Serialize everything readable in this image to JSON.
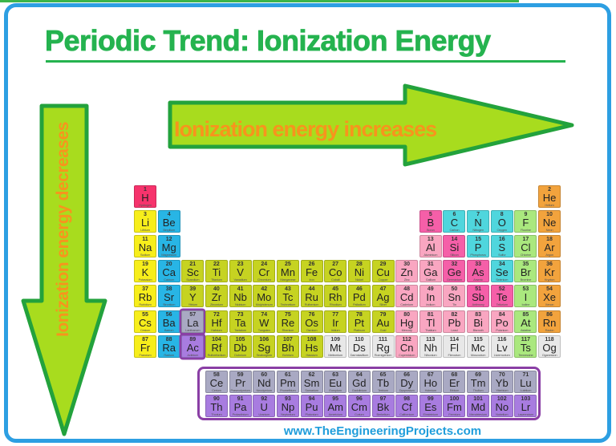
{
  "title": "Periodic Trend: Ionization Energy",
  "horizontal_arrow_label": "Ionization energy increases",
  "vertical_arrow_label": "Ionization energy decreases",
  "watermark": "www.TheEngineeringProjects.com",
  "colors": {
    "title_green": "#25b34f",
    "top_strip_green": "#3bb54a",
    "frame_blue": "#2d9fe2",
    "arrow_fill": "#a8dc1e",
    "arrow_stroke": "#23a23c",
    "arrow_label_orange": "#f7941d",
    "watermark_blue": "#1f9ddb",
    "group_box_purple": "#8a3fa5"
  },
  "periodic_table": {
    "category_colors": {
      "hydrogen": "#f6336c",
      "alkali-metal": "#f7ee1b",
      "alkaline-earth": "#28b5e5",
      "transition-metal": "#c6d321",
      "post-transition": "#f9a6c1",
      "metalloid": "#f55fa8",
      "nonmetal": "#4fd6dd",
      "halogen": "#aae87e",
      "noble-gas": "#f2a33d",
      "unknown": "#e8e8e8",
      "lanthanide": "#a9a9c3",
      "actinide": "#a87ce0"
    },
    "elements": [
      {
        "n": 1,
        "s": "H",
        "name": "Hydrogen",
        "cat": "hydrogen",
        "r": 1,
        "c": 1
      },
      {
        "n": 2,
        "s": "He",
        "name": "Helium",
        "cat": "noble-gas",
        "r": 1,
        "c": 18
      },
      {
        "n": 3,
        "s": "Li",
        "name": "Lithium",
        "cat": "alkali-metal",
        "r": 2,
        "c": 1
      },
      {
        "n": 4,
        "s": "Be",
        "name": "Beryllium",
        "cat": "alkaline-earth",
        "r": 2,
        "c": 2
      },
      {
        "n": 5,
        "s": "B",
        "name": "Boron",
        "cat": "metalloid",
        "r": 2,
        "c": 13
      },
      {
        "n": 6,
        "s": "C",
        "name": "Carbon",
        "cat": "nonmetal",
        "r": 2,
        "c": 14
      },
      {
        "n": 7,
        "s": "N",
        "name": "Nitrogen",
        "cat": "nonmetal",
        "r": 2,
        "c": 15
      },
      {
        "n": 8,
        "s": "O",
        "name": "Oxygen",
        "cat": "nonmetal",
        "r": 2,
        "c": 16
      },
      {
        "n": 9,
        "s": "F",
        "name": "Fluorine",
        "cat": "halogen",
        "r": 2,
        "c": 17
      },
      {
        "n": 10,
        "s": "Ne",
        "name": "Neon",
        "cat": "noble-gas",
        "r": 2,
        "c": 18
      },
      {
        "n": 11,
        "s": "Na",
        "name": "Sodium",
        "cat": "alkali-metal",
        "r": 3,
        "c": 1
      },
      {
        "n": 12,
        "s": "Mg",
        "name": "Magnesium",
        "cat": "alkaline-earth",
        "r": 3,
        "c": 2
      },
      {
        "n": 13,
        "s": "Al",
        "name": "Aluminium",
        "cat": "post-transition",
        "r": 3,
        "c": 13
      },
      {
        "n": 14,
        "s": "Si",
        "name": "Silicon",
        "cat": "metalloid",
        "r": 3,
        "c": 14
      },
      {
        "n": 15,
        "s": "P",
        "name": "Phosphorus",
        "cat": "nonmetal",
        "r": 3,
        "c": 15
      },
      {
        "n": 16,
        "s": "S",
        "name": "Sulfur",
        "cat": "nonmetal",
        "r": 3,
        "c": 16
      },
      {
        "n": 17,
        "s": "Cl",
        "name": "Chlorine",
        "cat": "halogen",
        "r": 3,
        "c": 17
      },
      {
        "n": 18,
        "s": "Ar",
        "name": "Argon",
        "cat": "noble-gas",
        "r": 3,
        "c": 18
      },
      {
        "n": 19,
        "s": "K",
        "name": "Potassium",
        "cat": "alkali-metal",
        "r": 4,
        "c": 1
      },
      {
        "n": 20,
        "s": "Ca",
        "name": "Calcium",
        "cat": "alkaline-earth",
        "r": 4,
        "c": 2
      },
      {
        "n": 21,
        "s": "Sc",
        "name": "Scandium",
        "cat": "transition-metal",
        "r": 4,
        "c": 3
      },
      {
        "n": 22,
        "s": "Ti",
        "name": "Titanium",
        "cat": "transition-metal",
        "r": 4,
        "c": 4
      },
      {
        "n": 23,
        "s": "V",
        "name": "Vanadium",
        "cat": "transition-metal",
        "r": 4,
        "c": 5
      },
      {
        "n": 24,
        "s": "Cr",
        "name": "Chromium",
        "cat": "transition-metal",
        "r": 4,
        "c": 6
      },
      {
        "n": 25,
        "s": "Mn",
        "name": "Manganese",
        "cat": "transition-metal",
        "r": 4,
        "c": 7
      },
      {
        "n": 26,
        "s": "Fe",
        "name": "Iron",
        "cat": "transition-metal",
        "r": 4,
        "c": 8
      },
      {
        "n": 27,
        "s": "Co",
        "name": "Cobalt",
        "cat": "transition-metal",
        "r": 4,
        "c": 9
      },
      {
        "n": 28,
        "s": "Ni",
        "name": "Nickel",
        "cat": "transition-metal",
        "r": 4,
        "c": 10
      },
      {
        "n": 29,
        "s": "Cu",
        "name": "Copper",
        "cat": "transition-metal",
        "r": 4,
        "c": 11
      },
      {
        "n": 30,
        "s": "Zn",
        "name": "Zinc",
        "cat": "post-transition",
        "r": 4,
        "c": 12
      },
      {
        "n": 31,
        "s": "Ga",
        "name": "Gallium",
        "cat": "post-transition",
        "r": 4,
        "c": 13
      },
      {
        "n": 32,
        "s": "Ge",
        "name": "Germanium",
        "cat": "metalloid",
        "r": 4,
        "c": 14
      },
      {
        "n": 33,
        "s": "As",
        "name": "Arsenic",
        "cat": "metalloid",
        "r": 4,
        "c": 15
      },
      {
        "n": 34,
        "s": "Se",
        "name": "Selenium",
        "cat": "nonmetal",
        "r": 4,
        "c": 16
      },
      {
        "n": 35,
        "s": "Br",
        "name": "Bromine",
        "cat": "halogen",
        "r": 4,
        "c": 17
      },
      {
        "n": 36,
        "s": "Kr",
        "name": "Krypton",
        "cat": "noble-gas",
        "r": 4,
        "c": 18
      },
      {
        "n": 37,
        "s": "Rb",
        "name": "Rubidium",
        "cat": "alkali-metal",
        "r": 5,
        "c": 1
      },
      {
        "n": 38,
        "s": "Sr",
        "name": "Strontium",
        "cat": "alkaline-earth",
        "r": 5,
        "c": 2
      },
      {
        "n": 39,
        "s": "Y",
        "name": "Yttrium",
        "cat": "transition-metal",
        "r": 5,
        "c": 3
      },
      {
        "n": 40,
        "s": "Zr",
        "name": "Zirconium",
        "cat": "transition-metal",
        "r": 5,
        "c": 4
      },
      {
        "n": 41,
        "s": "Nb",
        "name": "Niobium",
        "cat": "transition-metal",
        "r": 5,
        "c": 5
      },
      {
        "n": 42,
        "s": "Mo",
        "name": "Molybdenum",
        "cat": "transition-metal",
        "r": 5,
        "c": 6
      },
      {
        "n": 43,
        "s": "Tc",
        "name": "Technetium",
        "cat": "transition-metal",
        "r": 5,
        "c": 7
      },
      {
        "n": 44,
        "s": "Ru",
        "name": "Ruthenium",
        "cat": "transition-metal",
        "r": 5,
        "c": 8
      },
      {
        "n": 45,
        "s": "Rh",
        "name": "Rhodium",
        "cat": "transition-metal",
        "r": 5,
        "c": 9
      },
      {
        "n": 46,
        "s": "Pd",
        "name": "Palladium",
        "cat": "transition-metal",
        "r": 5,
        "c": 10
      },
      {
        "n": 47,
        "s": "Ag",
        "name": "Silver",
        "cat": "transition-metal",
        "r": 5,
        "c": 11
      },
      {
        "n": 48,
        "s": "Cd",
        "name": "Cadmium",
        "cat": "post-transition",
        "r": 5,
        "c": 12
      },
      {
        "n": 49,
        "s": "In",
        "name": "Indium",
        "cat": "post-transition",
        "r": 5,
        "c": 13
      },
      {
        "n": 50,
        "s": "Sn",
        "name": "Tin",
        "cat": "post-transition",
        "r": 5,
        "c": 14
      },
      {
        "n": 51,
        "s": "Sb",
        "name": "Antimony",
        "cat": "metalloid",
        "r": 5,
        "c": 15
      },
      {
        "n": 52,
        "s": "Te",
        "name": "Tellurium",
        "cat": "metalloid",
        "r": 5,
        "c": 16
      },
      {
        "n": 53,
        "s": "I",
        "name": "Iodine",
        "cat": "halogen",
        "r": 5,
        "c": 17
      },
      {
        "n": 54,
        "s": "Xe",
        "name": "Xenon",
        "cat": "noble-gas",
        "r": 5,
        "c": 18
      },
      {
        "n": 55,
        "s": "Cs",
        "name": "Cesium",
        "cat": "alkali-metal",
        "r": 6,
        "c": 1
      },
      {
        "n": 56,
        "s": "Ba",
        "name": "Barium",
        "cat": "alkaline-earth",
        "r": 6,
        "c": 2
      },
      {
        "n": 57,
        "s": "La",
        "name": "Lanthanum",
        "cat": "lanthanide",
        "r": 6,
        "c": 3,
        "hl": true
      },
      {
        "n": 72,
        "s": "Hf",
        "name": "Hafnium",
        "cat": "transition-metal",
        "r": 6,
        "c": 4
      },
      {
        "n": 73,
        "s": "Ta",
        "name": "Tantalum",
        "cat": "transition-metal",
        "r": 6,
        "c": 5
      },
      {
        "n": 74,
        "s": "W",
        "name": "Tungsten",
        "cat": "transition-metal",
        "r": 6,
        "c": 6
      },
      {
        "n": 75,
        "s": "Re",
        "name": "Rhenium",
        "cat": "transition-metal",
        "r": 6,
        "c": 7
      },
      {
        "n": 76,
        "s": "Os",
        "name": "Osmium",
        "cat": "transition-metal",
        "r": 6,
        "c": 8
      },
      {
        "n": 77,
        "s": "Ir",
        "name": "Iridium",
        "cat": "transition-metal",
        "r": 6,
        "c": 9
      },
      {
        "n": 78,
        "s": "Pt",
        "name": "Platinum",
        "cat": "transition-metal",
        "r": 6,
        "c": 10
      },
      {
        "n": 79,
        "s": "Au",
        "name": "Gold",
        "cat": "transition-metal",
        "r": 6,
        "c": 11
      },
      {
        "n": 80,
        "s": "Hg",
        "name": "Mercury",
        "cat": "post-transition",
        "r": 6,
        "c": 12
      },
      {
        "n": 81,
        "s": "Tl",
        "name": "Thallium",
        "cat": "post-transition",
        "r": 6,
        "c": 13
      },
      {
        "n": 82,
        "s": "Pb",
        "name": "Lead",
        "cat": "post-transition",
        "r": 6,
        "c": 14
      },
      {
        "n": 83,
        "s": "Bi",
        "name": "Bismuth",
        "cat": "post-transition",
        "r": 6,
        "c": 15
      },
      {
        "n": 84,
        "s": "Po",
        "name": "Polonium",
        "cat": "post-transition",
        "r": 6,
        "c": 16
      },
      {
        "n": 85,
        "s": "At",
        "name": "Astatine",
        "cat": "halogen",
        "r": 6,
        "c": 17
      },
      {
        "n": 86,
        "s": "Rn",
        "name": "Radon",
        "cat": "noble-gas",
        "r": 6,
        "c": 18
      },
      {
        "n": 87,
        "s": "Fr",
        "name": "Francium",
        "cat": "alkali-metal",
        "r": 7,
        "c": 1
      },
      {
        "n": 88,
        "s": "Ra",
        "name": "Radium",
        "cat": "alkaline-earth",
        "r": 7,
        "c": 2
      },
      {
        "n": 89,
        "s": "Ac",
        "name": "Actinium",
        "cat": "actinide",
        "r": 7,
        "c": 3,
        "hl": true
      },
      {
        "n": 104,
        "s": "Rf",
        "name": "Rutherfordium",
        "cat": "transition-metal",
        "r": 7,
        "c": 4
      },
      {
        "n": 105,
        "s": "Db",
        "name": "Dubnium",
        "cat": "transition-metal",
        "r": 7,
        "c": 5
      },
      {
        "n": 106,
        "s": "Sg",
        "name": "Seaborgium",
        "cat": "transition-metal",
        "r": 7,
        "c": 6
      },
      {
        "n": 107,
        "s": "Bh",
        "name": "Bohrium",
        "cat": "transition-metal",
        "r": 7,
        "c": 7
      },
      {
        "n": 108,
        "s": "Hs",
        "name": "Hassium",
        "cat": "transition-metal",
        "r": 7,
        "c": 8
      },
      {
        "n": 109,
        "s": "Mt",
        "name": "Meitnerium",
        "cat": "unknown",
        "r": 7,
        "c": 9
      },
      {
        "n": 110,
        "s": "Ds",
        "name": "Darmstadtium",
        "cat": "unknown",
        "r": 7,
        "c": 10
      },
      {
        "n": 111,
        "s": "Rg",
        "name": "Roentgenium",
        "cat": "unknown",
        "r": 7,
        "c": 11
      },
      {
        "n": 112,
        "s": "Cn",
        "name": "Copernicium",
        "cat": "post-transition",
        "r": 7,
        "c": 12
      },
      {
        "n": 113,
        "s": "Nh",
        "name": "Nihonium",
        "cat": "unknown",
        "r": 7,
        "c": 13
      },
      {
        "n": 114,
        "s": "Fl",
        "name": "Flerovium",
        "cat": "unknown",
        "r": 7,
        "c": 14
      },
      {
        "n": 115,
        "s": "Mc",
        "name": "Moscovium",
        "cat": "unknown",
        "r": 7,
        "c": 15
      },
      {
        "n": 116,
        "s": "Lv",
        "name": "Livermorium",
        "cat": "unknown",
        "r": 7,
        "c": 16
      },
      {
        "n": 117,
        "s": "Ts",
        "name": "Tennessine",
        "cat": "halogen",
        "r": 7,
        "c": 17
      },
      {
        "n": 118,
        "s": "Og",
        "name": "Oganesson",
        "cat": "unknown",
        "r": 7,
        "c": 18
      },
      {
        "n": 58,
        "s": "Ce",
        "name": "Cerium",
        "cat": "lanthanide",
        "r": 8,
        "c": 4
      },
      {
        "n": 59,
        "s": "Pr",
        "name": "Praseodymium",
        "cat": "lanthanide",
        "r": 8,
        "c": 5
      },
      {
        "n": 60,
        "s": "Nd",
        "name": "Neodymium",
        "cat": "lanthanide",
        "r": 8,
        "c": 6
      },
      {
        "n": 61,
        "s": "Pm",
        "name": "Promethium",
        "cat": "lanthanide",
        "r": 8,
        "c": 7
      },
      {
        "n": 62,
        "s": "Sm",
        "name": "Samarium",
        "cat": "lanthanide",
        "r": 8,
        "c": 8
      },
      {
        "n": 63,
        "s": "Eu",
        "name": "Europium",
        "cat": "lanthanide",
        "r": 8,
        "c": 9
      },
      {
        "n": 64,
        "s": "Gd",
        "name": "Gadolinium",
        "cat": "lanthanide",
        "r": 8,
        "c": 10
      },
      {
        "n": 65,
        "s": "Tb",
        "name": "Terbium",
        "cat": "lanthanide",
        "r": 8,
        "c": 11
      },
      {
        "n": 66,
        "s": "Dy",
        "name": "Dysprosium",
        "cat": "lanthanide",
        "r": 8,
        "c": 12
      },
      {
        "n": 67,
        "s": "Ho",
        "name": "Holmium",
        "cat": "lanthanide",
        "r": 8,
        "c": 13
      },
      {
        "n": 68,
        "s": "Er",
        "name": "Erbium",
        "cat": "lanthanide",
        "r": 8,
        "c": 14
      },
      {
        "n": 69,
        "s": "Tm",
        "name": "Thulium",
        "cat": "lanthanide",
        "r": 8,
        "c": 15
      },
      {
        "n": 70,
        "s": "Yb",
        "name": "Ytterbium",
        "cat": "lanthanide",
        "r": 8,
        "c": 16
      },
      {
        "n": 71,
        "s": "Lu",
        "name": "Lutetium",
        "cat": "lanthanide",
        "r": 8,
        "c": 17
      },
      {
        "n": 90,
        "s": "Th",
        "name": "Thorium",
        "cat": "actinide",
        "r": 9,
        "c": 4
      },
      {
        "n": 91,
        "s": "Pa",
        "name": "Protactinium",
        "cat": "actinide",
        "r": 9,
        "c": 5
      },
      {
        "n": 92,
        "s": "U",
        "name": "Uranium",
        "cat": "actinide",
        "r": 9,
        "c": 6
      },
      {
        "n": 93,
        "s": "Np",
        "name": "Neptunium",
        "cat": "actinide",
        "r": 9,
        "c": 7
      },
      {
        "n": 94,
        "s": "Pu",
        "name": "Plutonium",
        "cat": "actinide",
        "r": 9,
        "c": 8
      },
      {
        "n": 95,
        "s": "Am",
        "name": "Americium",
        "cat": "actinide",
        "r": 9,
        "c": 9
      },
      {
        "n": 96,
        "s": "Cm",
        "name": "Curium",
        "cat": "actinide",
        "r": 9,
        "c": 10
      },
      {
        "n": 97,
        "s": "Bk",
        "name": "Berkelium",
        "cat": "actinide",
        "r": 9,
        "c": 11
      },
      {
        "n": 98,
        "s": "Cf",
        "name": "Californium",
        "cat": "actinide",
        "r": 9,
        "c": 12
      },
      {
        "n": 99,
        "s": "Es",
        "name": "Einsteinium",
        "cat": "actinide",
        "r": 9,
        "c": 13
      },
      {
        "n": 100,
        "s": "Fm",
        "name": "Fermium",
        "cat": "actinide",
        "r": 9,
        "c": 14
      },
      {
        "n": 101,
        "s": "Md",
        "name": "Mendelevium",
        "cat": "actinide",
        "r": 9,
        "c": 15
      },
      {
        "n": 102,
        "s": "No",
        "name": "Nobelium",
        "cat": "actinide",
        "r": 9,
        "c": 16
      },
      {
        "n": 103,
        "s": "Lr",
        "name": "Lawrencium",
        "cat": "actinide",
        "r": 9,
        "c": 17
      }
    ]
  }
}
